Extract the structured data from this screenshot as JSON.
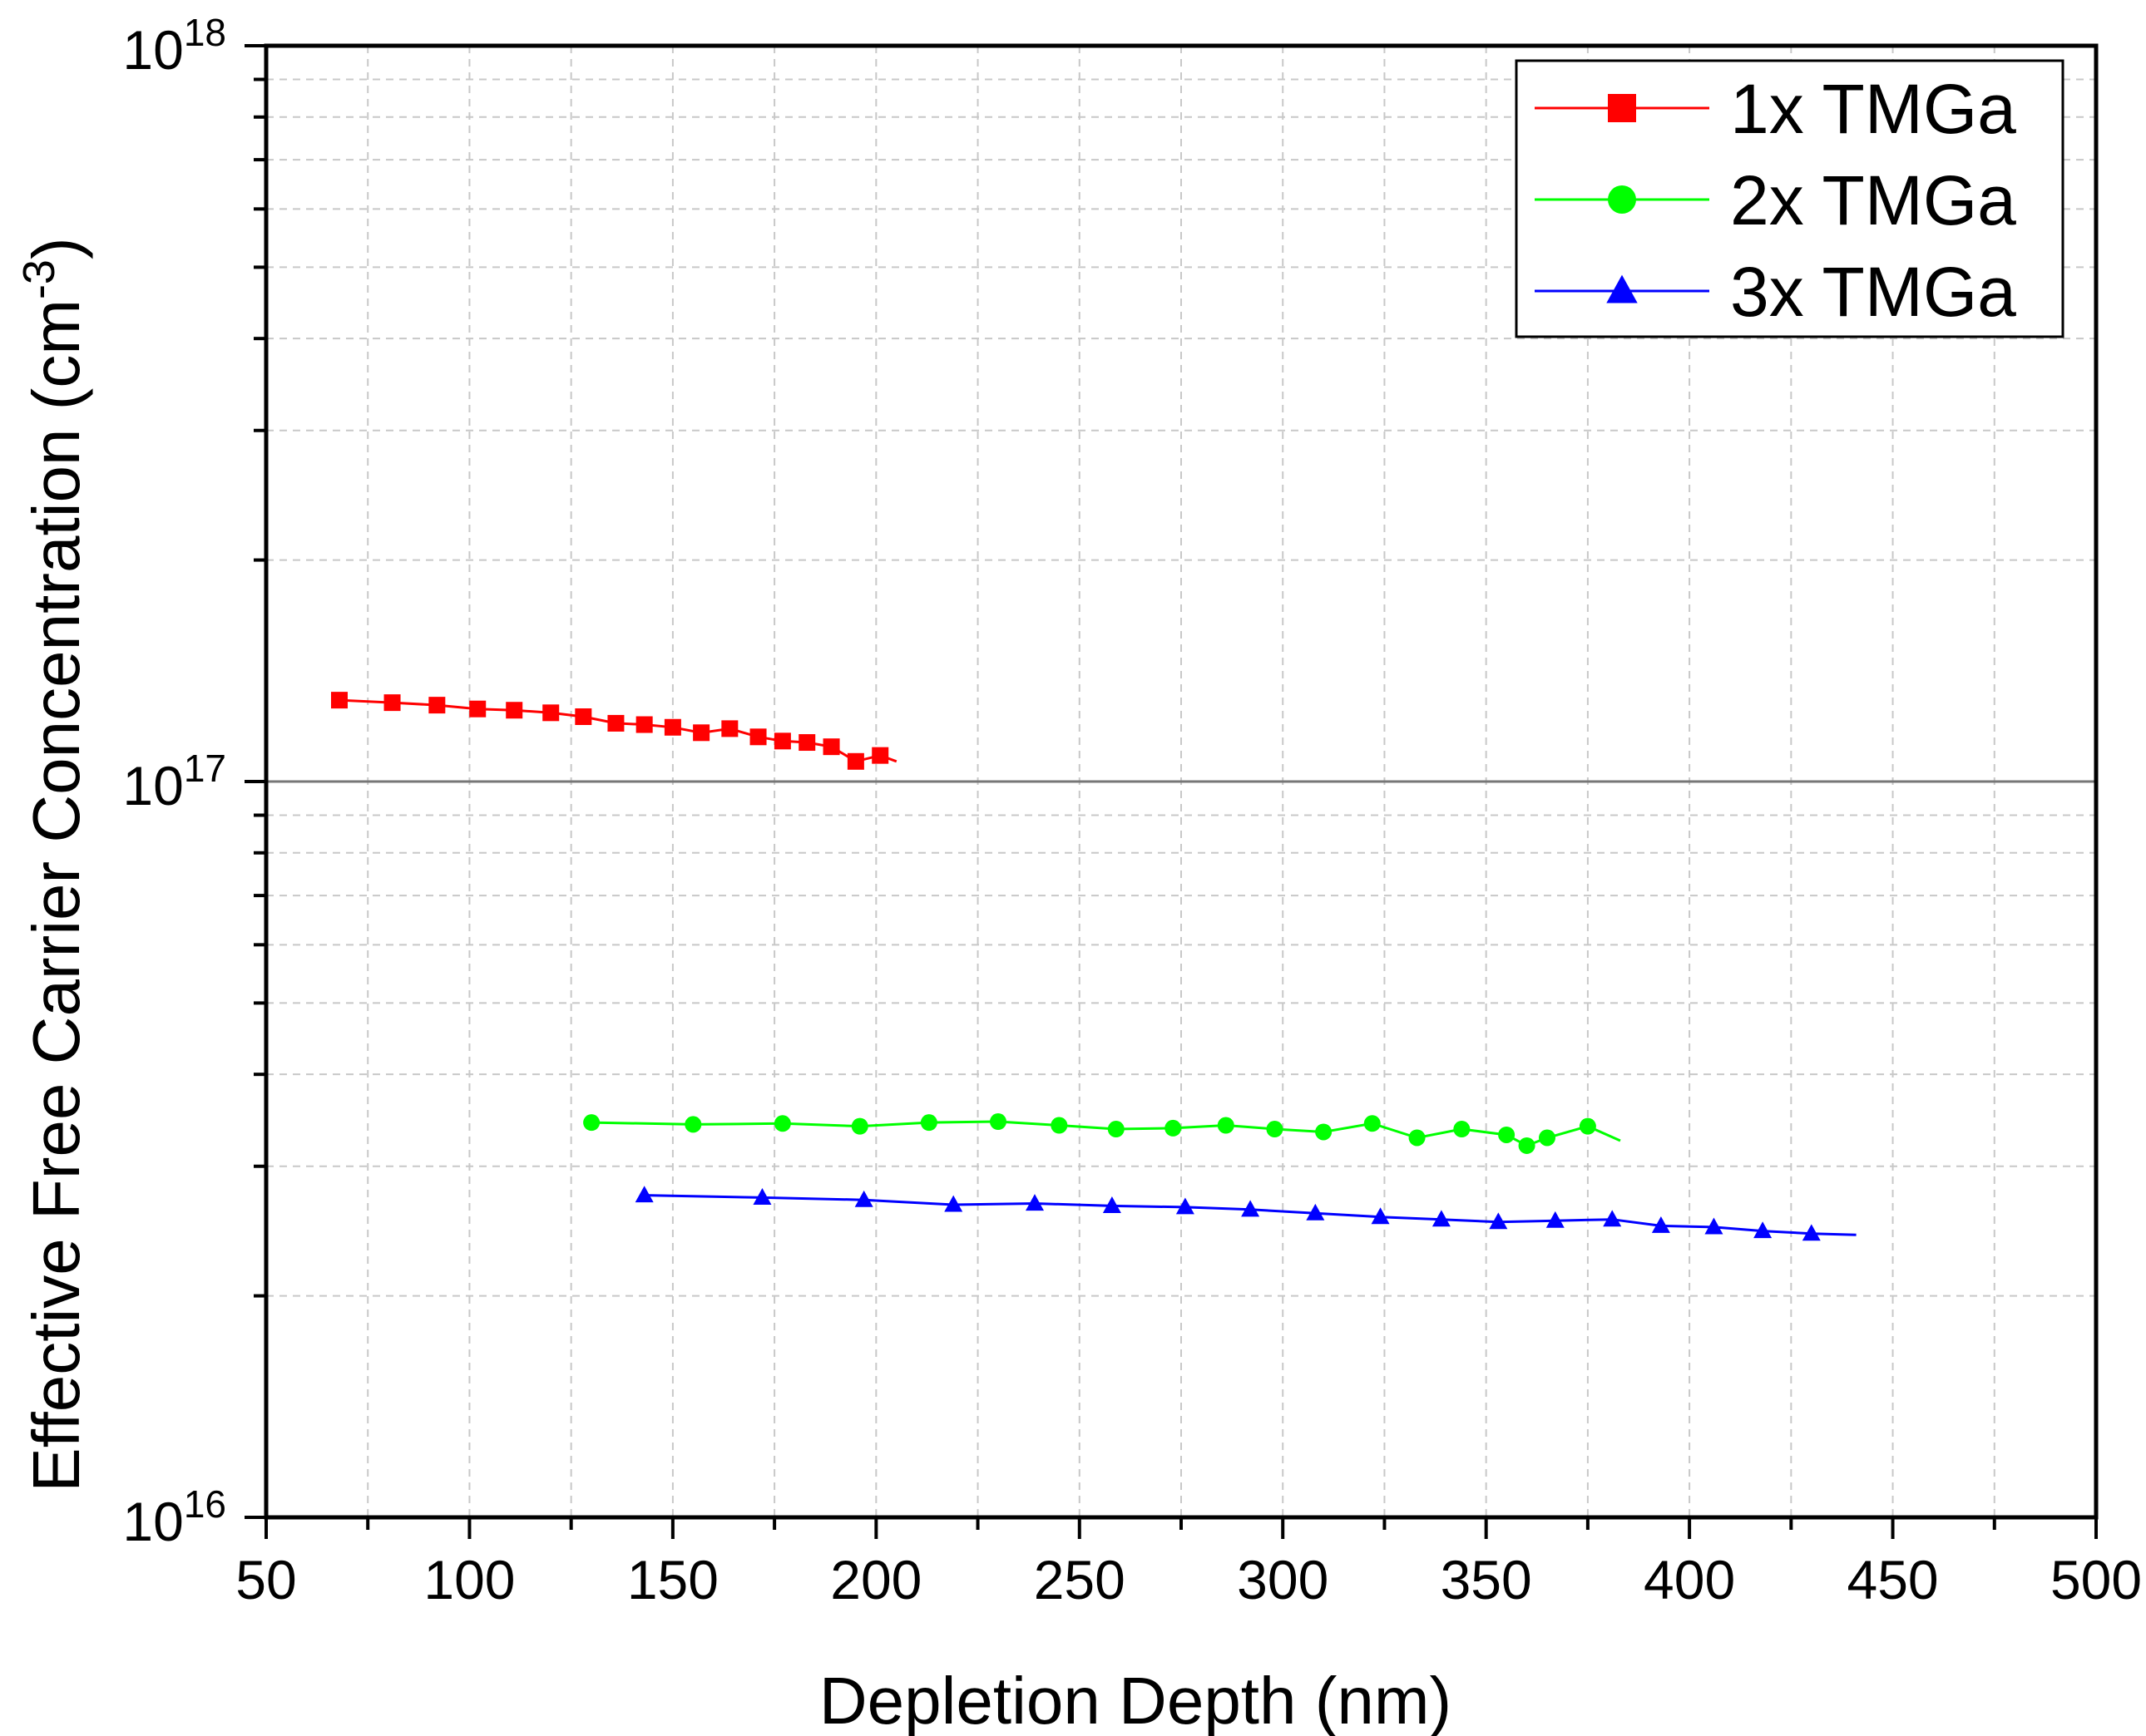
{
  "chart_data": {
    "type": "line",
    "xlabel": "Depletion Depth (nm)",
    "ylabel": "Effective Free Carrier Concentration (cm",
    "ylabel_exp": "-3",
    "ylabel_close": ")",
    "xlim": [
      50,
      500
    ],
    "ylim": [
      1e+16,
      1e+18
    ],
    "yscale": "log",
    "grid": true,
    "legend_position": "top-right",
    "x_ticks": [
      "50",
      "100",
      "150",
      "200",
      "250",
      "300",
      "350",
      "400",
      "450",
      "500"
    ],
    "y_ticks": [
      {
        "base": "10",
        "exp": "16",
        "value": 1e+16
      },
      {
        "base": "10",
        "exp": "17",
        "value": 1e+17
      },
      {
        "base": "10",
        "exp": "18",
        "value": 1e+18
      }
    ],
    "series": [
      {
        "name": "1x TMGa",
        "color": "#ff0000",
        "marker": "square",
        "x": [
          68,
          81,
          92,
          102,
          111,
          120,
          128,
          136,
          143,
          150,
          157,
          164,
          171,
          177,
          183,
          189,
          195,
          201,
          205
        ],
        "y": [
          1.29e+17,
          1.28e+17,
          1.27e+17,
          1.255e+17,
          1.25e+17,
          1.24e+17,
          1.225e+17,
          1.2e+17,
          1.195e+17,
          1.185e+17,
          1.165e+17,
          1.18e+17,
          1.15e+17,
          1.135e+17,
          1.13e+17,
          1.115e+17,
          1.065e+17,
          1.085e+17,
          1.065e+17
        ],
        "marker_count": 18
      },
      {
        "name": "2x TMGa",
        "color": "#00ff00",
        "marker": "circle",
        "x": [
          130,
          155,
          177,
          196,
          213,
          230,
          245,
          259,
          273,
          286,
          298,
          310,
          322,
          333,
          344,
          355,
          360,
          365,
          375,
          383
        ],
        "y": [
          3.44e+16,
          3.42e+16,
          3.43e+16,
          3.4e+16,
          3.44e+16,
          3.45e+16,
          3.41e+16,
          3.37e+16,
          3.38e+16,
          3.41e+16,
          3.37e+16,
          3.34e+16,
          3.43e+16,
          3.28e+16,
          3.37e+16,
          3.31e+16,
          3.2e+16,
          3.28e+16,
          3.4e+16,
          3.25e+16
        ],
        "marker_count": 19
      },
      {
        "name": "3x TMGa",
        "color": "#0000ff",
        "marker": "triangle",
        "x": [
          143,
          172,
          197,
          219,
          239,
          258,
          276,
          292,
          308,
          324,
          339,
          353,
          367,
          381,
          393,
          406,
          418,
          430,
          441
        ],
        "y": [
          2.74e+16,
          2.72e+16,
          2.7e+16,
          2.66e+16,
          2.67e+16,
          2.65e+16,
          2.64e+16,
          2.62e+16,
          2.59e+16,
          2.56e+16,
          2.54e+16,
          2.52e+16,
          2.53e+16,
          2.54e+16,
          2.49e+16,
          2.48e+16,
          2.45e+16,
          2.43e+16,
          2.42e+16
        ],
        "marker_count": 18
      }
    ]
  }
}
